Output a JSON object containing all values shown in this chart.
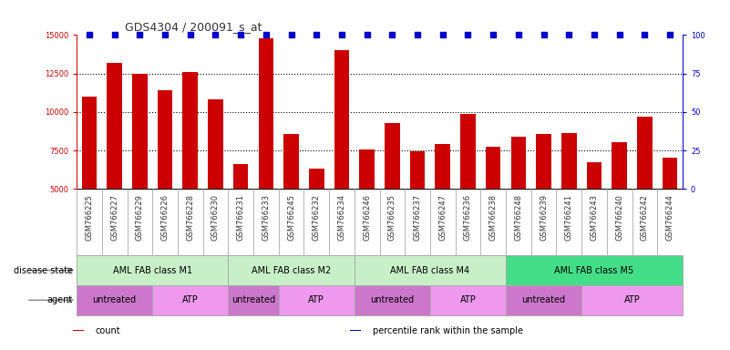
{
  "title": "GDS4304 / 200091_s_at",
  "samples": [
    "GSM766225",
    "GSM766227",
    "GSM766229",
    "GSM766226",
    "GSM766228",
    "GSM766230",
    "GSM766231",
    "GSM766233",
    "GSM766245",
    "GSM766232",
    "GSM766234",
    "GSM766246",
    "GSM766235",
    "GSM766237",
    "GSM766247",
    "GSM766236",
    "GSM766238",
    "GSM766248",
    "GSM766239",
    "GSM766241",
    "GSM766243",
    "GSM766240",
    "GSM766242",
    "GSM766244"
  ],
  "counts": [
    11000,
    13200,
    12500,
    11400,
    12600,
    10800,
    6600,
    14800,
    8600,
    6350,
    14000,
    7550,
    9300,
    7450,
    7900,
    9900,
    7750,
    8400,
    8550,
    8650,
    6750,
    8050,
    9700,
    7050
  ],
  "percentile_rank": [
    100,
    100,
    100,
    100,
    100,
    100,
    100,
    100,
    100,
    100,
    100,
    100,
    100,
    100,
    100,
    100,
    100,
    100,
    100,
    100,
    100,
    100,
    100,
    100
  ],
  "bar_color": "#cc0000",
  "dot_color": "#0000cc",
  "ylim_left": [
    5000,
    15000
  ],
  "yticks_left": [
    5000,
    7500,
    10000,
    12500,
    15000
  ],
  "ylim_right": [
    0,
    100
  ],
  "yticks_right": [
    0,
    25,
    50,
    75,
    100
  ],
  "disease_state_groups": [
    {
      "label": "AML FAB class M1",
      "start": 0,
      "end": 6,
      "color": "#c8f0c8"
    },
    {
      "label": "AML FAB class M2",
      "start": 6,
      "end": 11,
      "color": "#c8f0c8"
    },
    {
      "label": "AML FAB class M4",
      "start": 11,
      "end": 17,
      "color": "#c8f0c8"
    },
    {
      "label": "AML FAB class M5",
      "start": 17,
      "end": 24,
      "color": "#44dd88"
    }
  ],
  "agent_groups": [
    {
      "label": "untreated",
      "start": 0,
      "end": 3,
      "color": "#dd88dd"
    },
    {
      "label": "ATP",
      "start": 3,
      "end": 6,
      "color": "#ee99ee"
    },
    {
      "label": "untreated",
      "start": 6,
      "end": 8,
      "color": "#dd88dd"
    },
    {
      "label": "ATP",
      "start": 8,
      "end": 11,
      "color": "#ee99ee"
    },
    {
      "label": "untreated",
      "start": 11,
      "end": 14,
      "color": "#dd88dd"
    },
    {
      "label": "ATP",
      "start": 14,
      "end": 17,
      "color": "#ee99ee"
    },
    {
      "label": "untreated",
      "start": 17,
      "end": 20,
      "color": "#dd88dd"
    },
    {
      "label": "ATP",
      "start": 20,
      "end": 24,
      "color": "#ee99ee"
    }
  ],
  "legend_items": [
    {
      "label": "count",
      "color": "#cc0000"
    },
    {
      "label": "percentile rank within the sample",
      "color": "#0000cc"
    }
  ],
  "chart_bg": "#ffffff",
  "xticklabel_bg": "#cccccc",
  "grid_color": "#000000",
  "fig_bg": "#ffffff",
  "title_fontsize": 9,
  "tick_fontsize": 6,
  "label_fontsize": 7,
  "row_fontsize": 7
}
